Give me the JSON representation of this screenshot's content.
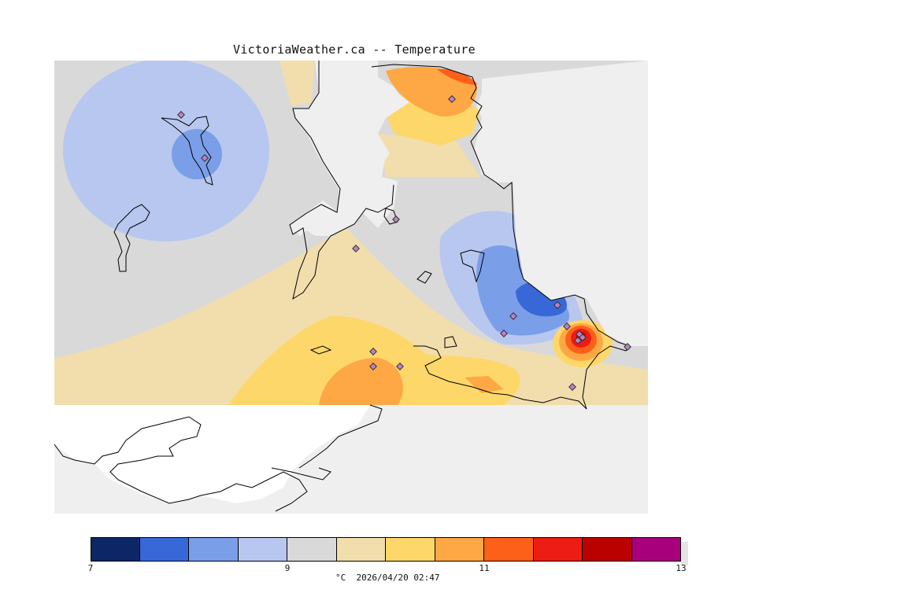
{
  "title": "VictoriaWeather.ca -- Temperature",
  "legend": {
    "caption": "°C  2026/04/20 02:47",
    "ticks": [
      "7",
      "9",
      "11",
      "13"
    ],
    "swatches": [
      "#0d2766",
      "#3868d8",
      "#7b9ee8",
      "#b7c7ef",
      "#d9d9d9",
      "#f1deac",
      "#fed76b",
      "#fda845",
      "#fd6019",
      "#ed1c14",
      "#bb0000",
      "#a8007c"
    ]
  },
  "map": {
    "colors": {
      "sea": "#efefef",
      "land_nodata": "#ffffff",
      "coast": "#000000",
      "station_fill": "#c080c8",
      "station_stroke": "#333333"
    },
    "stations_count_visible": 20
  }
}
